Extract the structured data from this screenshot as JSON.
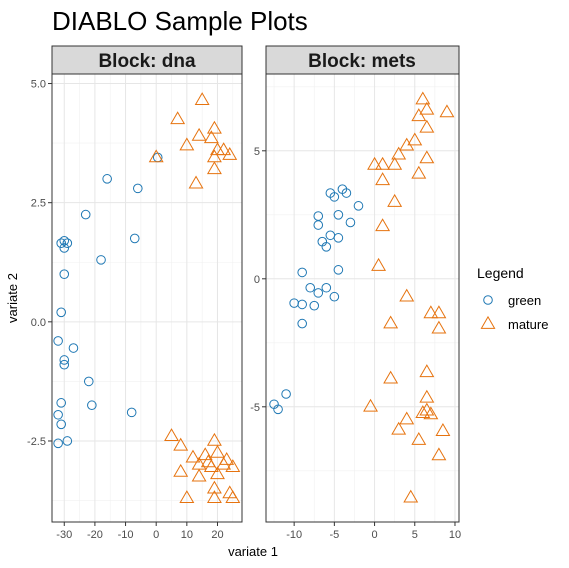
{
  "chart_data": {
    "type": "scatter",
    "title": "DIABLO Sample Plots",
    "xlabel": "variate 1",
    "ylabel": "variate 2",
    "grid": true,
    "legend": {
      "title": "Legend",
      "position": "right",
      "entries": [
        {
          "label": "green",
          "color": "#1f78b4",
          "shape": "circle"
        },
        {
          "label": "mature",
          "color": "#e6730f",
          "shape": "triangle"
        }
      ]
    },
    "panels": [
      {
        "strip": "Block: dna",
        "xlim": [
          -34,
          28
        ],
        "ylim": [
          -4.2,
          5.2
        ],
        "x_ticks": [
          -30,
          -20,
          -10,
          0,
          10,
          20
        ],
        "x_tick_labels": [
          "-30",
          "-20",
          "-10",
          "0",
          "10",
          "20"
        ],
        "y_ticks": [
          -2.5,
          0,
          2.5,
          5
        ],
        "y_tick_labels": [
          "-2.5",
          "0.0",
          "2.5",
          "5.0"
        ],
        "series": [
          {
            "name": "green",
            "points": [
              [
                0.5,
                3.45
              ],
              [
                -16,
                3.0
              ],
              [
                -6,
                2.8
              ],
              [
                -23,
                2.25
              ],
              [
                -30,
                1.7
              ],
              [
                -31,
                1.65
              ],
              [
                -29,
                1.65
              ],
              [
                -30,
                1.55
              ],
              [
                -7,
                1.75
              ],
              [
                -18,
                1.3
              ],
              [
                -30,
                1.0
              ],
              [
                -31,
                0.2
              ],
              [
                -32,
                -0.4
              ],
              [
                -27,
                -0.55
              ],
              [
                -30,
                -0.8
              ],
              [
                -30,
                -0.9
              ],
              [
                -22,
                -1.25
              ],
              [
                -31,
                -1.7
              ],
              [
                -21,
                -1.75
              ],
              [
                -32,
                -1.95
              ],
              [
                -8,
                -1.9
              ],
              [
                -31,
                -2.15
              ],
              [
                -29,
                -2.5
              ],
              [
                -32,
                -2.55
              ]
            ]
          },
          {
            "name": "mature",
            "points": [
              [
                15,
                4.65
              ],
              [
                7,
                4.25
              ],
              [
                19,
                4.05
              ],
              [
                14,
                3.9
              ],
              [
                18,
                3.85
              ],
              [
                10,
                3.7
              ],
              [
                20,
                3.6
              ],
              [
                22,
                3.6
              ],
              [
                24,
                3.5
              ],
              [
                19,
                3.45
              ],
              [
                0,
                3.45
              ],
              [
                19,
                3.2
              ],
              [
                13,
                2.9
              ],
              [
                5,
                -2.4
              ],
              [
                19,
                -2.5
              ],
              [
                8,
                -2.6
              ],
              [
                16,
                -2.8
              ],
              [
                20,
                -2.75
              ],
              [
                12,
                -2.85
              ],
              [
                23,
                -2.9
              ],
              [
                17,
                -2.95
              ],
              [
                14,
                -3.0
              ],
              [
                22,
                -3.0
              ],
              [
                25,
                -3.05
              ],
              [
                18,
                -3.05
              ],
              [
                8,
                -3.15
              ],
              [
                20,
                -3.2
              ],
              [
                14,
                -3.25
              ],
              [
                19,
                -3.5
              ],
              [
                24,
                -3.6
              ],
              [
                10,
                -3.7
              ],
              [
                19,
                -3.7
              ],
              [
                25,
                -3.7
              ]
            ]
          }
        ]
      },
      {
        "strip": "Block: mets",
        "xlim": [
          -13.5,
          10.5
        ],
        "ylim": [
          -9.5,
          8.0
        ],
        "x_ticks": [
          -10,
          -5,
          0,
          5,
          10
        ],
        "x_tick_labels": [
          "-10",
          "-5",
          "0",
          "5",
          "10"
        ],
        "y_ticks": [
          -5,
          0,
          5
        ],
        "y_tick_labels": [
          "-5",
          "0",
          "5"
        ],
        "series": [
          {
            "name": "green",
            "points": [
              [
                -5.5,
                3.35
              ],
              [
                -4,
                3.5
              ],
              [
                -3.5,
                3.35
              ],
              [
                -5,
                3.2
              ],
              [
                -2,
                2.85
              ],
              [
                -4.5,
                2.5
              ],
              [
                -7,
                2.45
              ],
              [
                -3,
                2.2
              ],
              [
                -7,
                2.1
              ],
              [
                -5.5,
                1.7
              ],
              [
                -4.5,
                1.6
              ],
              [
                -6.5,
                1.45
              ],
              [
                -6,
                1.25
              ],
              [
                -9,
                0.25
              ],
              [
                -4.5,
                0.35
              ],
              [
                -8,
                -0.35
              ],
              [
                -6,
                -0.35
              ],
              [
                -7,
                -0.55
              ],
              [
                -5,
                -0.7
              ],
              [
                -10,
                -0.95
              ],
              [
                -9,
                -1.0
              ],
              [
                -7.5,
                -1.05
              ],
              [
                -9,
                -1.75
              ],
              [
                -11,
                -4.5
              ],
              [
                -12.5,
                -4.9
              ],
              [
                -12,
                -5.1
              ]
            ]
          },
          {
            "name": "mature",
            "points": [
              [
                6,
                7.0
              ],
              [
                6.5,
                6.6
              ],
              [
                9,
                6.5
              ],
              [
                5.5,
                6.35
              ],
              [
                6.5,
                5.9
              ],
              [
                5,
                5.4
              ],
              [
                4,
                5.2
              ],
              [
                3,
                4.85
              ],
              [
                6.5,
                4.7
              ],
              [
                0,
                4.45
              ],
              [
                1,
                4.45
              ],
              [
                2.5,
                4.45
              ],
              [
                5.5,
                4.1
              ],
              [
                1,
                3.85
              ],
              [
                2.5,
                3.0
              ],
              [
                1,
                2.05
              ],
              [
                0.5,
                0.5
              ],
              [
                4,
                -0.7
              ],
              [
                7,
                -1.35
              ],
              [
                8,
                -1.35
              ],
              [
                2,
                -1.75
              ],
              [
                8,
                -1.95
              ],
              [
                2,
                -3.9
              ],
              [
                6.5,
                -3.65
              ],
              [
                6.5,
                -4.65
              ],
              [
                -0.5,
                -5.0
              ],
              [
                6.5,
                -5.15
              ],
              [
                6,
                -5.25
              ],
              [
                7,
                -5.3
              ],
              [
                4,
                -5.5
              ],
              [
                3,
                -5.9
              ],
              [
                8.5,
                -5.95
              ],
              [
                5.5,
                -6.3
              ],
              [
                8,
                -6.9
              ],
              [
                4.5,
                -8.55
              ]
            ]
          }
        ]
      }
    ]
  }
}
